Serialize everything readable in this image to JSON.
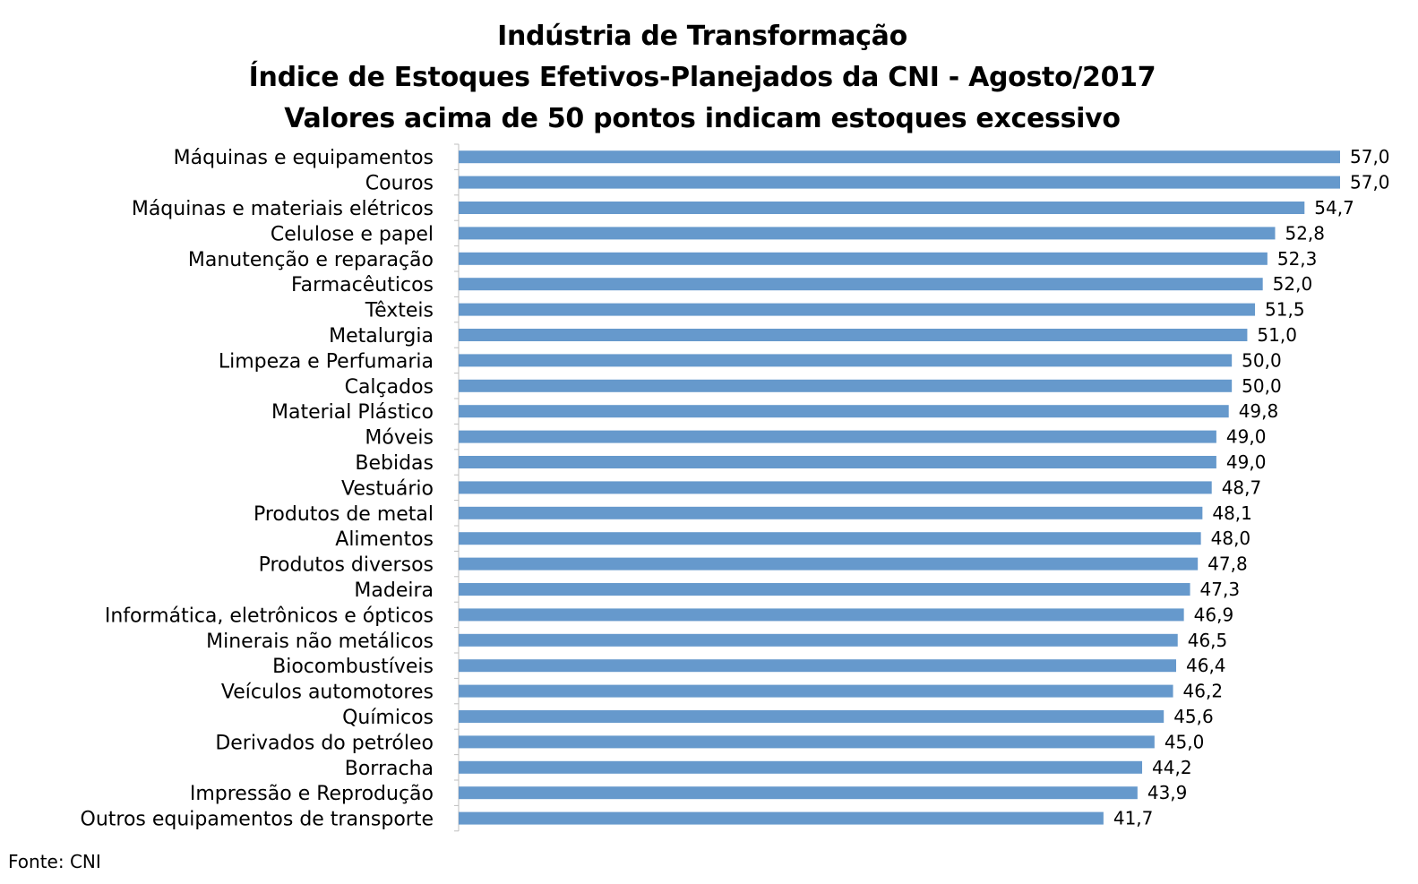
{
  "chart_data": {
    "type": "bar",
    "orientation": "horizontal",
    "title": "Indústria de Transformação",
    "subtitle": "Índice de Estoques Efetivos-Planejados da CNI - Agosto/2017",
    "subtitle2": "Valores acima de 50 pontos indicam estoques excessivo",
    "xlim": [
      0,
      57
    ],
    "bar_color": "#6699CC",
    "axis_color": "#BFBFBF",
    "categories": [
      "Máquinas e equipamentos",
      "Couros",
      "Máquinas e materiais elétricos",
      "Celulose e papel",
      "Manutenção e reparação",
      "Farmacêuticos",
      "Têxteis",
      "Metalurgia",
      "Limpeza e Perfumaria",
      "Calçados",
      "Material Plástico",
      "Móveis",
      "Bebidas",
      "Vestuário",
      "Produtos de metal",
      "Alimentos",
      "Produtos diversos",
      "Madeira",
      "Informática, eletrônicos e ópticos",
      "Minerais não metálicos",
      "Biocombustíveis",
      "Veículos automotores",
      "Químicos",
      "Derivados do petróleo",
      "Borracha",
      "Impressão e Reprodução",
      "Outros equipamentos de transporte"
    ],
    "values": [
      57.0,
      57.0,
      54.7,
      52.8,
      52.3,
      52.0,
      51.5,
      51.0,
      50.0,
      50.0,
      49.8,
      49.0,
      49.0,
      48.7,
      48.1,
      48.0,
      47.8,
      47.3,
      46.9,
      46.5,
      46.4,
      46.2,
      45.6,
      45.0,
      44.2,
      43.9,
      41.7
    ],
    "value_labels": [
      "57,0",
      "57,0",
      "54,7",
      "52,8",
      "52,3",
      "52,0",
      "51,5",
      "51,0",
      "50,0",
      "50,0",
      "49,8",
      "49,0",
      "49,0",
      "48,7",
      "48,1",
      "48,0",
      "47,8",
      "47,3",
      "46,9",
      "46,5",
      "46,4",
      "46,2",
      "45,6",
      "45,0",
      "44,2",
      "43,9",
      "41,7"
    ]
  },
  "source": "Fonte: CNI"
}
